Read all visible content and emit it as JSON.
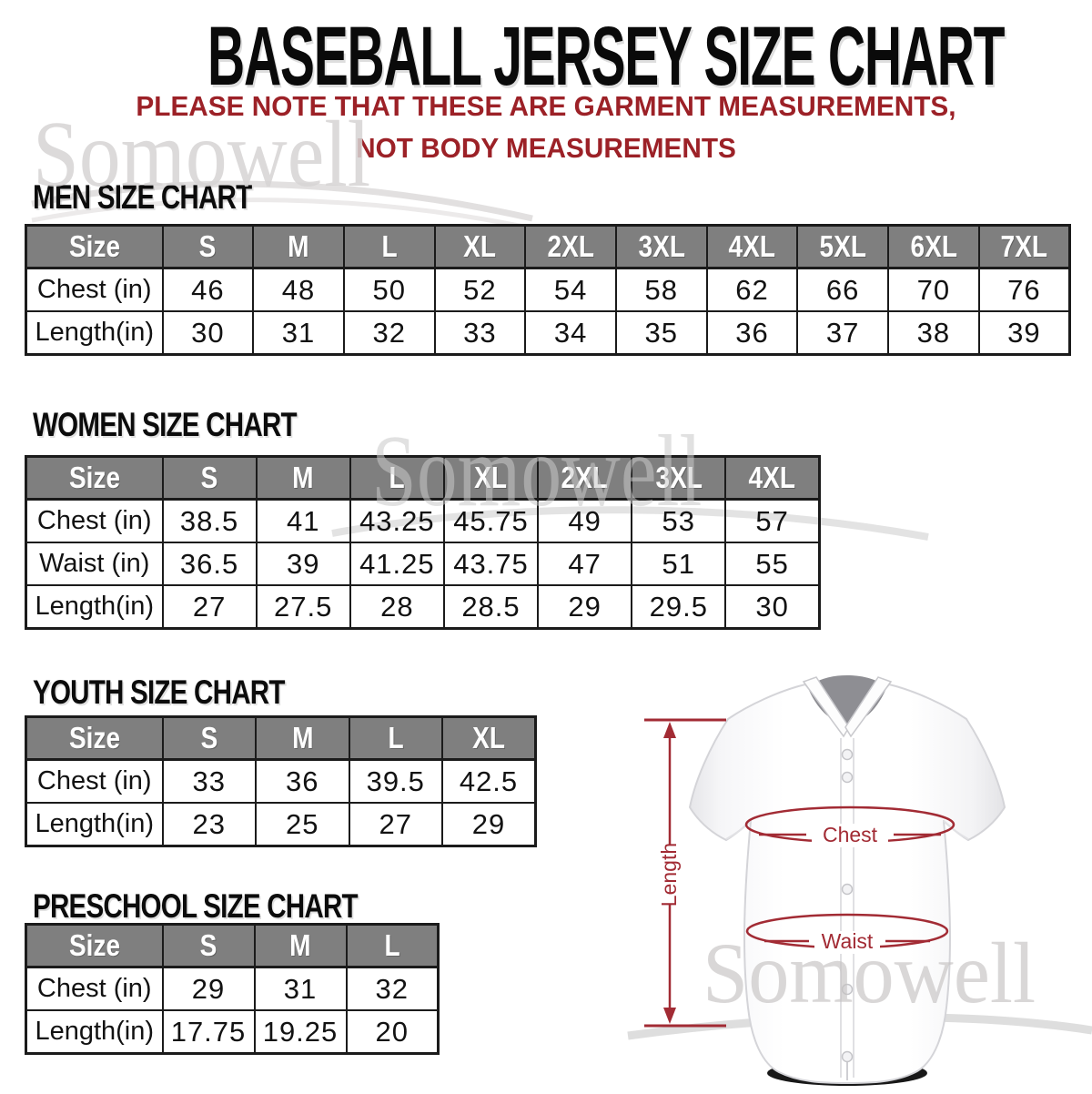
{
  "header": {
    "title": "BASEBALL JERSEY SIZE CHART",
    "subtitle_line1": "PLEASE NOTE THAT THESE ARE GARMENT MEASUREMENTS,",
    "subtitle_line2": "NOT BODY MEASUREMENTS"
  },
  "watermark": {
    "text": "Somowell"
  },
  "tables": [
    {
      "id": "men",
      "title": "MEN SIZE CHART",
      "columns": [
        "Size",
        "S",
        "M",
        "L",
        "XL",
        "2XL",
        "3XL",
        "4XL",
        "5XL",
        "6XL",
        "7XL"
      ],
      "rows": [
        {
          "label": "Chest (in)",
          "values": [
            "46",
            "48",
            "50",
            "52",
            "54",
            "58",
            "62",
            "66",
            "70",
            "76"
          ]
        },
        {
          "label": "Length(in)",
          "values": [
            "30",
            "31",
            "32",
            "33",
            "34",
            "35",
            "36",
            "37",
            "38",
            "39"
          ]
        }
      ]
    },
    {
      "id": "women",
      "title": "WOMEN SIZE CHART",
      "columns": [
        "Size",
        "S",
        "M",
        "L",
        "XL",
        "2XL",
        "3XL",
        "4XL"
      ],
      "rows": [
        {
          "label": "Chest (in)",
          "values": [
            "38.5",
            "41",
            "43.25",
            "45.75",
            "49",
            "53",
            "57"
          ]
        },
        {
          "label": "Waist (in)",
          "values": [
            "36.5",
            "39",
            "41.25",
            "43.75",
            "47",
            "51",
            "55"
          ]
        },
        {
          "label": "Length(in)",
          "values": [
            "27",
            "27.5",
            "28",
            "28.5",
            "29",
            "29.5",
            "30"
          ]
        }
      ]
    },
    {
      "id": "youth",
      "title": "YOUTH SIZE CHART",
      "columns": [
        "Size",
        "S",
        "M",
        "L",
        "XL"
      ],
      "rows": [
        {
          "label": "Chest (in)",
          "values": [
            "33",
            "36",
            "39.5",
            "42.5"
          ]
        },
        {
          "label": "Length(in)",
          "values": [
            "23",
            "25",
            "27",
            "29"
          ]
        }
      ]
    },
    {
      "id": "preschool",
      "title": "PRESCHOOL SIZE CHART",
      "columns": [
        "Size",
        "S",
        "M",
        "L"
      ],
      "rows": [
        {
          "label": "Chest (in)",
          "values": [
            "29",
            "31",
            "32"
          ]
        },
        {
          "label": "Length(in)",
          "values": [
            "17.75",
            "19.25",
            "20"
          ]
        }
      ]
    }
  ],
  "diagram": {
    "length_label": "Length",
    "chest_label": "Chest",
    "waist_label": "Waist"
  },
  "colors": {
    "subtitle_red": "#9c2127",
    "diagram_red": "#a22b34",
    "table_header_gray": "#7f7f7f",
    "table_border": "#1b1b1b",
    "watermark_gray": "#d6d3d3"
  }
}
